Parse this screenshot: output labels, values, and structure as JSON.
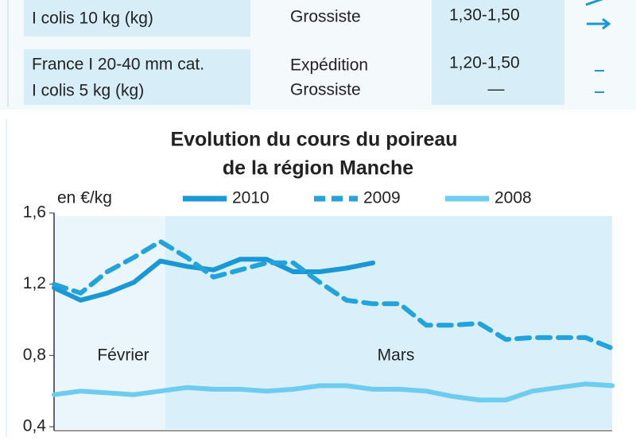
{
  "table": {
    "rows": [
      {
        "product": [
          "I colis 10 kg (kg)"
        ],
        "market": [
          "Grossiste"
        ],
        "price": [
          "1,30-1,50"
        ]
      },
      {
        "product": [
          "France I 20-40 mm cat.",
          "I colis 5 kg (kg)"
        ],
        "market": [
          "Expédition",
          "Grossiste"
        ],
        "price": [
          "1,20-1,50",
          "—"
        ]
      }
    ]
  },
  "chart_data": {
    "type": "line",
    "title": [
      "Evolution du cours du poireau",
      "de la région Manche"
    ],
    "y_label": "en €/kg",
    "categories": [
      null,
      null,
      null,
      null,
      null,
      null,
      null,
      null,
      null,
      null,
      null,
      null,
      null,
      null,
      null,
      null,
      null,
      null,
      null,
      null,
      null,
      null
    ],
    "annotations": [
      "Février",
      "Mars"
    ],
    "ylim": [
      0.4,
      1.6
    ],
    "yticks": [
      {
        "value": 0.4,
        "label": "0,4"
      },
      {
        "value": 0.8,
        "label": "0,8"
      },
      {
        "value": 1.2,
        "label": "1,2"
      },
      {
        "value": 1.6,
        "label": "1,6"
      }
    ],
    "legend": "top",
    "series": [
      {
        "name": "2010",
        "color": "#1a98d5",
        "dashed": false,
        "values": [
          1.18,
          1.11,
          1.15,
          1.21,
          1.33,
          1.3,
          1.28,
          1.34,
          1.34,
          1.27,
          1.27,
          1.29,
          1.32,
          null,
          null,
          null,
          null,
          null,
          null,
          null,
          null,
          null
        ]
      },
      {
        "name": "2009",
        "color": "#22a3dc",
        "dashed": true,
        "values": [
          1.2,
          1.15,
          1.27,
          1.35,
          1.44,
          1.35,
          1.24,
          1.28,
          1.32,
          1.32,
          1.21,
          1.11,
          1.09,
          1.09,
          0.97,
          0.97,
          0.98,
          0.89,
          0.9,
          0.9,
          0.9,
          0.84
        ]
      },
      {
        "name": "2008",
        "color": "#6dccf0",
        "dashed": false,
        "values": [
          0.58,
          0.6,
          0.59,
          0.58,
          0.6,
          0.62,
          0.61,
          0.61,
          0.6,
          0.61,
          0.63,
          0.63,
          0.61,
          0.61,
          0.6,
          0.57,
          0.55,
          0.55,
          0.6,
          0.62,
          0.64,
          0.63
        ]
      }
    ]
  }
}
